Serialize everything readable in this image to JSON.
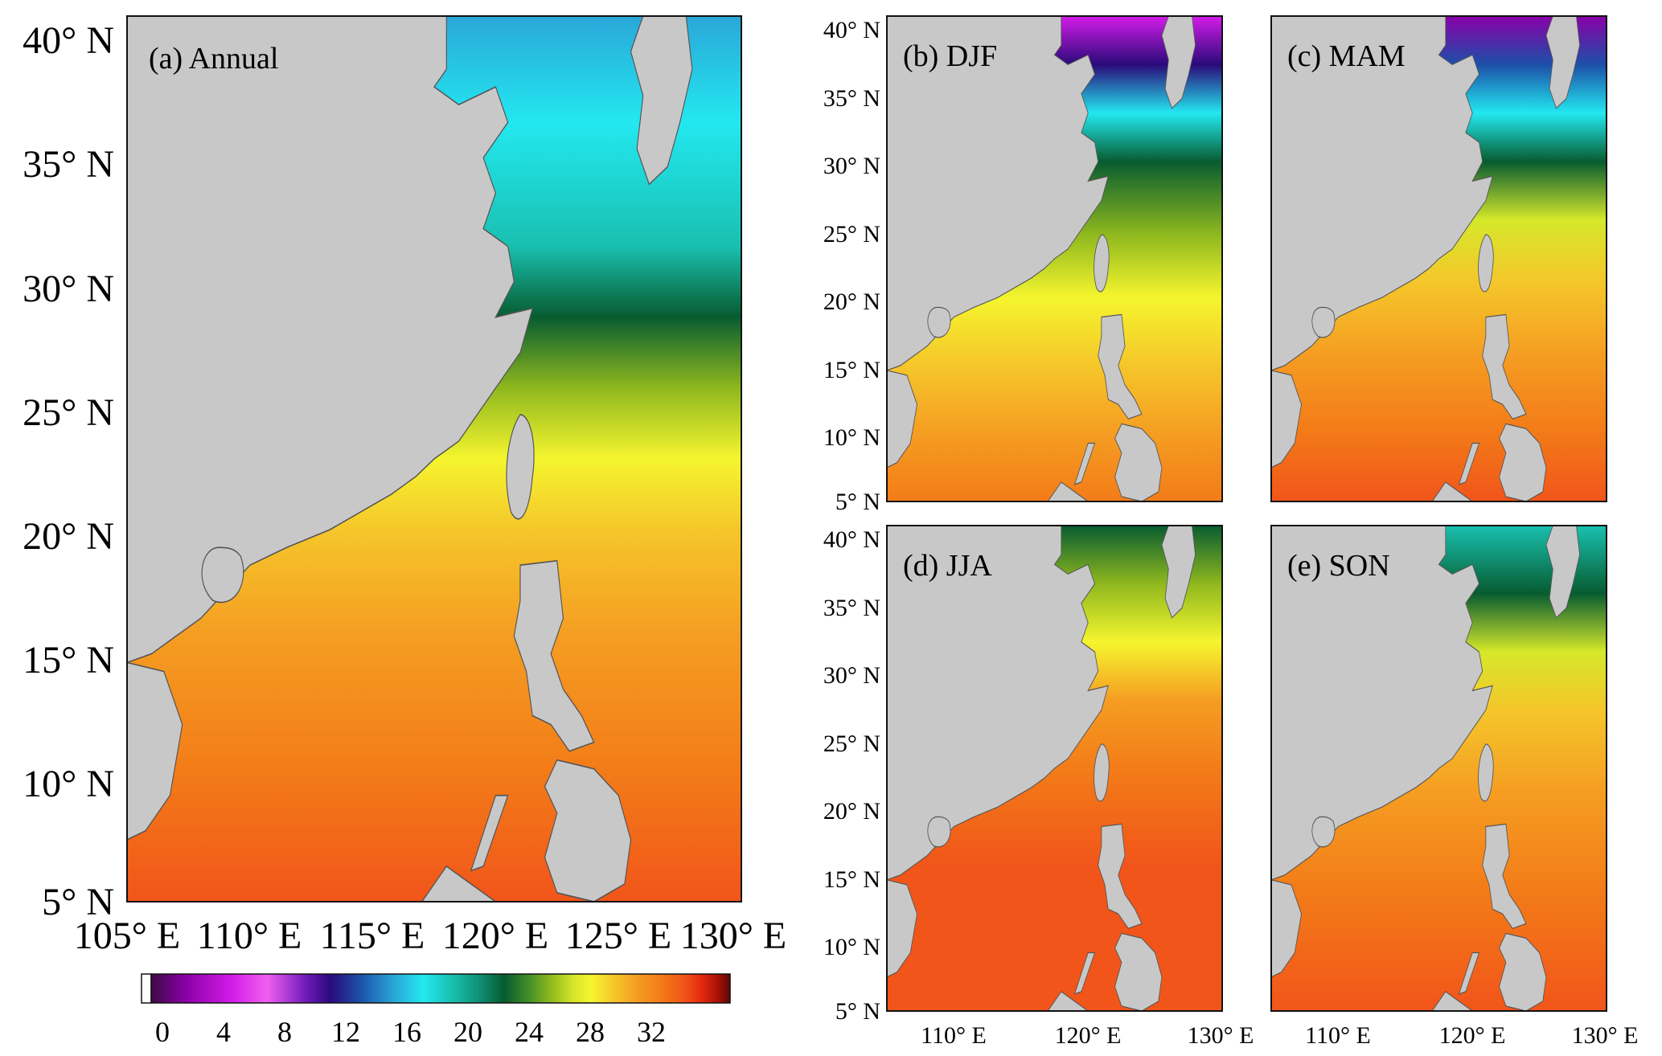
{
  "panels": [
    {
      "id": "a",
      "label": "(a) Annual",
      "season": "annual"
    },
    {
      "id": "b",
      "label": "(b) DJF",
      "season": "djf"
    },
    {
      "id": "c",
      "label": "(c) MAM",
      "season": "mam"
    },
    {
      "id": "d",
      "label": "(d) JJA",
      "season": "jja"
    },
    {
      "id": "e",
      "label": "(e) SON",
      "season": "son"
    }
  ],
  "axes": {
    "lat_ticks": [
      "40° N",
      "35° N",
      "30° N",
      "25° N",
      "20° N",
      "15° N",
      "10° N",
      "5° N"
    ],
    "lon_ticks_main": [
      "105° E",
      "110° E",
      "115° E",
      "120° E",
      "125° E",
      "130° E"
    ],
    "lon_ticks_small": [
      "110° E",
      "120° E",
      "130° E"
    ]
  },
  "colorbar": {
    "ticks": [
      "0",
      "4",
      "8",
      "12",
      "16",
      "20",
      "24",
      "28",
      "32"
    ],
    "range": [
      -2,
      36
    ],
    "colors": [
      "#ffffff",
      "#3d0a44",
      "#8a00a8",
      "#d41ce8",
      "#f060f0",
      "#6a18b8",
      "#2a0a7a",
      "#1c4fa8",
      "#2aa7d8",
      "#23e8f0",
      "#19c0b0",
      "#0e8c70",
      "#075c30",
      "#3f8c28",
      "#8fb81e",
      "#d6e82a",
      "#f5f52e",
      "#f5c62a",
      "#f59d22",
      "#f37c18",
      "#f1551a",
      "#e52a0e",
      "#a51006",
      "#5a0a04"
    ]
  },
  "colors": {
    "land": "#c8c8c8",
    "coast": "#555555",
    "frame": "#111111"
  }
}
